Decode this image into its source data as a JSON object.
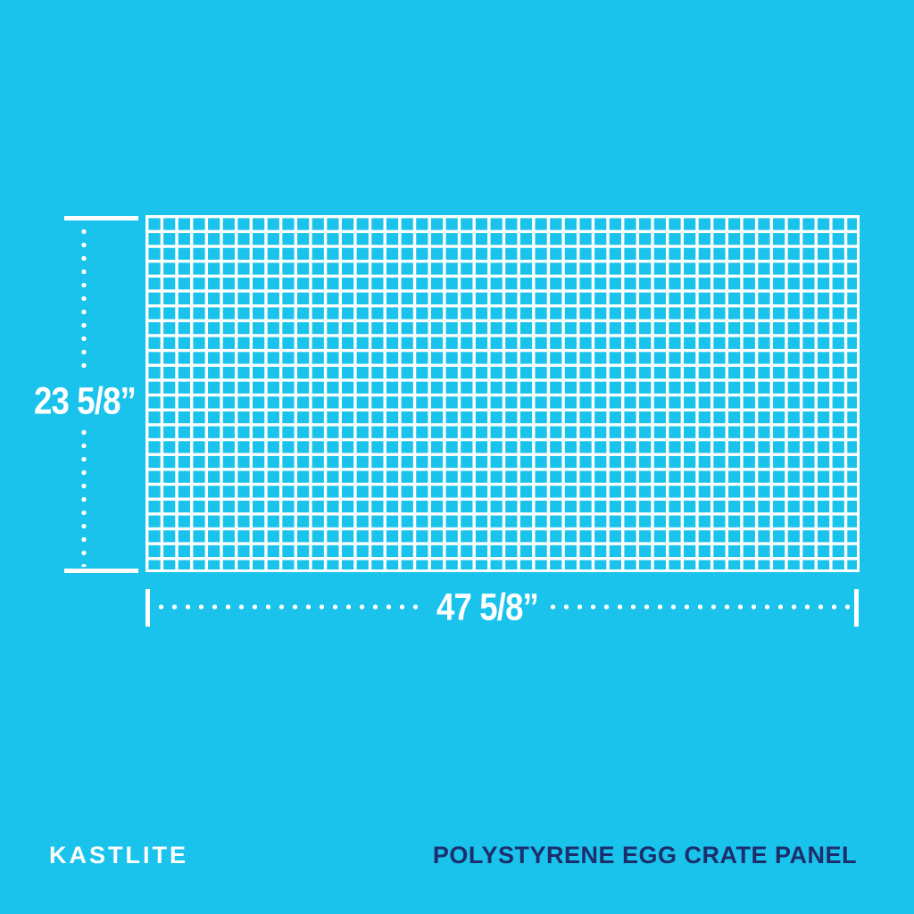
{
  "canvas": {
    "background_color": "#19c3eb",
    "grid_line_color": "#ffffff"
  },
  "panel": {
    "type": "egg-crate-grid",
    "columns": 48,
    "rows": 24,
    "height_dimension": {
      "label": "23 5/8”"
    },
    "width_dimension": {
      "label": "47 5/8”"
    }
  },
  "footer": {
    "brand": "KASTLITE",
    "brand_color": "#ffffff",
    "product_title": "POLYSTYRENE EGG CRATE PANEL",
    "product_title_color": "#1c2e6d"
  }
}
